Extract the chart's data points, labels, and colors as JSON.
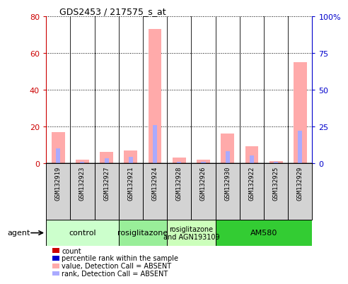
{
  "title": "GDS2453 / 217575_s_at",
  "samples": [
    "GSM132919",
    "GSM132923",
    "GSM132927",
    "GSM132921",
    "GSM132924",
    "GSM132928",
    "GSM132926",
    "GSM132930",
    "GSM132922",
    "GSM132925",
    "GSM132929"
  ],
  "pink_bars": [
    17,
    2,
    6,
    7,
    73,
    3,
    2,
    16,
    9,
    1,
    55
  ],
  "blue_bars": [
    10,
    1,
    3,
    4,
    26,
    1,
    1,
    8,
    5,
    1,
    22
  ],
  "ylim_left": [
    0,
    80
  ],
  "ylim_right": [
    0,
    100
  ],
  "yticks_left": [
    0,
    20,
    40,
    60,
    80
  ],
  "yticks_right": [
    0,
    25,
    50,
    75,
    100
  ],
  "ytick_labels_left": [
    "0",
    "20",
    "40",
    "60",
    "80"
  ],
  "ytick_labels_right": [
    "0",
    "25",
    "50",
    "75",
    "100%"
  ],
  "agent_groups": [
    {
      "label": "control",
      "start": 0,
      "end": 3,
      "color": "#ccffcc"
    },
    {
      "label": "rosiglitazone",
      "start": 3,
      "end": 5,
      "color": "#99ee99"
    },
    {
      "label": "rosiglitazone\nand AGN193109",
      "start": 5,
      "end": 7,
      "color": "#ccffbb"
    },
    {
      "label": "AM580",
      "start": 7,
      "end": 11,
      "color": "#33cc33"
    }
  ],
  "pink_color": "#ffaaaa",
  "blue_color": "#aaaaff",
  "tick_color_left": "#cc0000",
  "tick_color_right": "#0000cc",
  "legend_items": [
    {
      "color": "#cc0000",
      "label": "count",
      "marker": "s"
    },
    {
      "color": "#0000cc",
      "label": "percentile rank within the sample",
      "marker": "s"
    },
    {
      "color": "#ffaaaa",
      "label": "value, Detection Call = ABSENT",
      "marker": "s"
    },
    {
      "color": "#aaaaff",
      "label": "rank, Detection Call = ABSENT",
      "marker": "s"
    }
  ]
}
